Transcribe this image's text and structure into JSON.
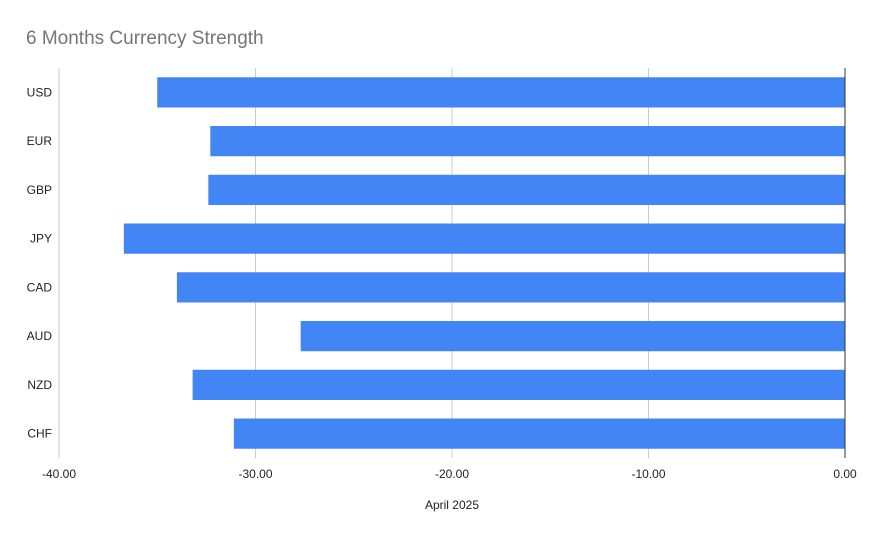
{
  "chart_data": {
    "type": "bar",
    "orientation": "horizontal",
    "title": "6 Months Currency Strength",
    "xlabel": "April 2025",
    "ylabel": "",
    "categories": [
      "USD",
      "EUR",
      "GBP",
      "JPY",
      "CAD",
      "AUD",
      "NZD",
      "CHF"
    ],
    "values": [
      -35.0,
      -32.3,
      -32.4,
      -36.7,
      -34.0,
      -27.7,
      -33.2,
      -31.1
    ],
    "xlim": [
      -40,
      0
    ],
    "xticks": [
      -40,
      -30,
      -20,
      -10,
      0
    ],
    "xtick_labels": [
      "-40.00",
      "-30.00",
      "-20.00",
      "-10.00",
      "0.00"
    ],
    "grid": true,
    "bar_color": "#4285F4"
  }
}
